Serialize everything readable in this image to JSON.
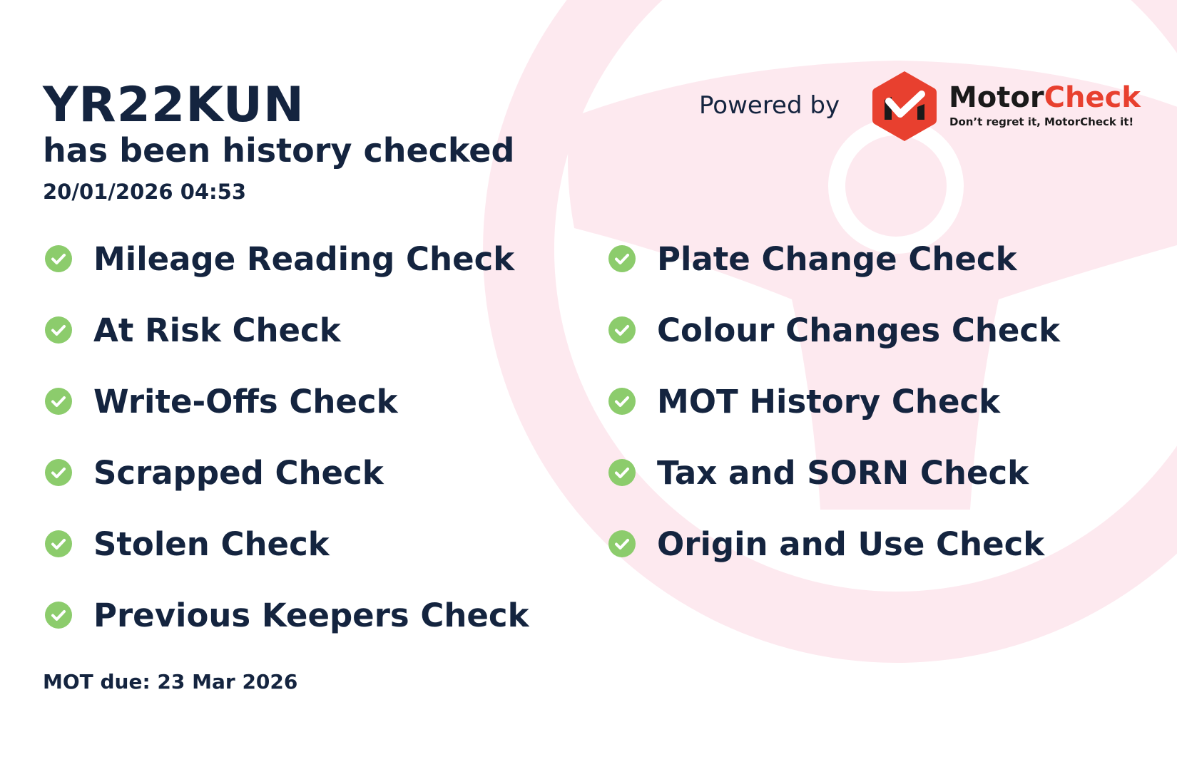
{
  "header": {
    "plate": "YR22KUN",
    "subtitle": "has been history checked",
    "timestamp": "20/01/2026 04:53"
  },
  "branding": {
    "powered_by": "Powered by",
    "brand_part1": "Motor",
    "brand_part2": "Check",
    "tagline": "Don’t regret it, MotorCheck it!",
    "accent_color": "#e8402f",
    "background_tint": "#fde9ef"
  },
  "checks": {
    "icon": "check-circle-icon",
    "icon_color": "#8ccc6c",
    "left": [
      "Mileage Reading Check",
      "At Risk Check",
      "Write-Offs Check",
      "Scrapped Check",
      "Stolen Check",
      "Previous Keepers Check"
    ],
    "right": [
      "Plate Change Check",
      "Colour Changes Check",
      "MOT History Check",
      "Tax and SORN Check",
      "Origin and Use Check"
    ]
  },
  "footer": {
    "mot_due": "MOT due: 23 Mar 2026"
  }
}
